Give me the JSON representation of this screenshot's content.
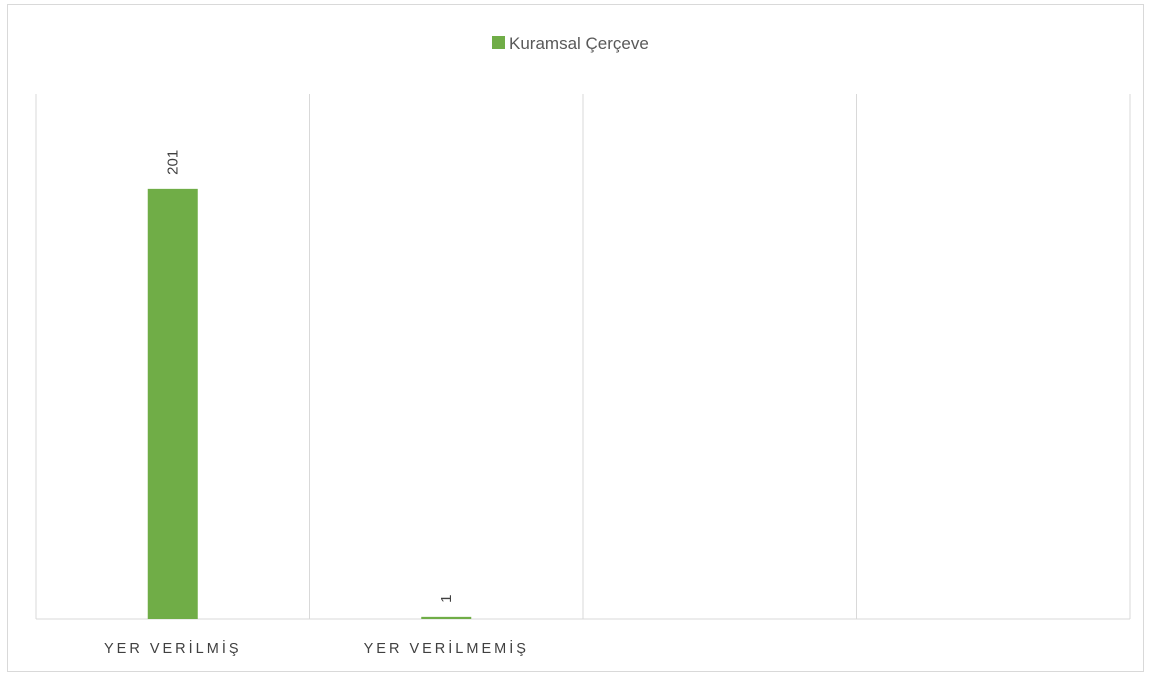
{
  "chart_data": {
    "type": "bar",
    "categories": [
      "YER VERİLMİŞ",
      "YER VERİLMEMİŞ",
      "",
      ""
    ],
    "series": [
      {
        "name": "Kuramsal Çerçeve",
        "values": [
          201,
          1,
          null,
          null
        ],
        "color": "#70ad47"
      }
    ],
    "title": "",
    "xlabel": "",
    "ylabel": "",
    "ylim": [
      0,
      250
    ],
    "grid": "vertical category dividers",
    "legend_position": "top",
    "data_labels": true
  }
}
